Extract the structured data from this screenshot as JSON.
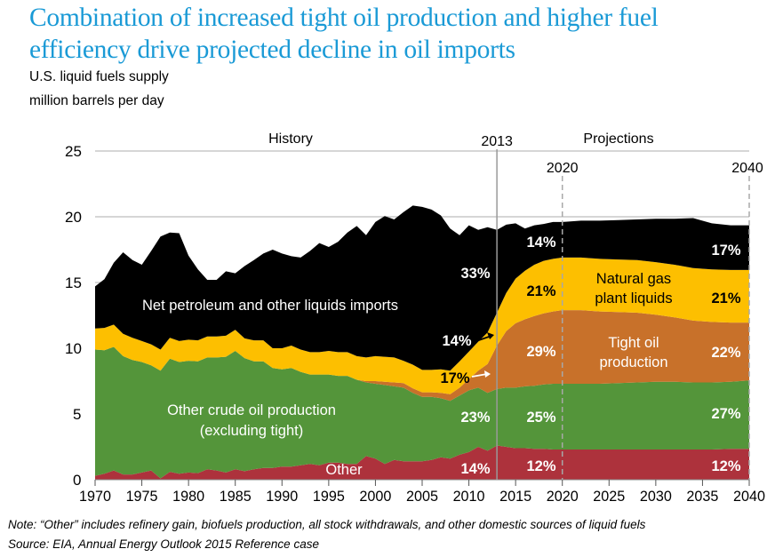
{
  "title_line1": "Combination of increased tight oil production and higher fuel",
  "title_line2": "efficiency drive projected decline in oil imports",
  "subtitle_line1": "U.S. liquid fuels supply",
  "subtitle_line2": "million barrels per day",
  "note": "Note: “Other” includes refinery gain, biofuels production, all stock withdrawals, and other domestic sources of liquid fuels",
  "source": "Source:  EIA, Annual Energy Outlook 2015 Reference case",
  "chart_data": {
    "type": "area",
    "stacked": true,
    "title": "U.S. liquid fuels supply",
    "ylabel": "million barrels per day",
    "xlabel": "",
    "xlim": [
      1970,
      2040
    ],
    "ylim": [
      0,
      25
    ],
    "yticks": [
      0,
      5,
      10,
      15,
      20,
      25
    ],
    "xticks": [
      1970,
      1975,
      1980,
      1985,
      1990,
      1995,
      2000,
      2005,
      2010,
      2015,
      2020,
      2025,
      2030,
      2035,
      2040
    ],
    "grid": "horizontal",
    "period_labels": {
      "history": "History",
      "projections": "Projections"
    },
    "markers": [
      {
        "year": 2013,
        "label": "2013",
        "style": "solid"
      },
      {
        "year": 2020,
        "label": "2020",
        "style": "dashed"
      },
      {
        "year": 2040,
        "label": "2040",
        "style": "dashed"
      }
    ],
    "x": [
      1970,
      1971,
      1972,
      1973,
      1974,
      1975,
      1976,
      1977,
      1978,
      1979,
      1980,
      1981,
      1982,
      1983,
      1984,
      1985,
      1986,
      1987,
      1988,
      1989,
      1990,
      1991,
      1992,
      1993,
      1994,
      1995,
      1996,
      1997,
      1998,
      1999,
      2000,
      2001,
      2002,
      2003,
      2004,
      2005,
      2006,
      2007,
      2008,
      2009,
      2010,
      2011,
      2012,
      2013,
      2014,
      2015,
      2016,
      2017,
      2018,
      2019,
      2020,
      2022,
      2024,
      2026,
      2028,
      2030,
      2032,
      2034,
      2036,
      2038,
      2040
    ],
    "series": [
      {
        "name": "Other",
        "color": "#ad323c",
        "values": [
          0.3,
          0.45,
          0.7,
          0.4,
          0.4,
          0.55,
          0.7,
          0.1,
          0.6,
          0.45,
          0.55,
          0.5,
          0.8,
          0.7,
          0.55,
          0.8,
          0.65,
          0.8,
          0.9,
          0.9,
          1.0,
          1.0,
          1.1,
          1.2,
          1.1,
          1.3,
          1.3,
          1.2,
          1.2,
          1.8,
          1.6,
          1.2,
          1.5,
          1.4,
          1.4,
          1.4,
          1.5,
          1.7,
          1.6,
          1.9,
          2.1,
          2.5,
          2.2,
          2.6,
          2.5,
          2.4,
          2.4,
          2.35,
          2.35,
          2.3,
          2.3,
          2.3,
          2.3,
          2.3,
          2.3,
          2.3,
          2.3,
          2.3,
          2.3,
          2.35,
          2.35
        ]
      },
      {
        "name": "Other crude oil production (excluding tight)",
        "color": "#54953a",
        "values": [
          9.6,
          9.4,
          9.4,
          9.0,
          8.7,
          8.4,
          8.0,
          8.2,
          8.6,
          8.5,
          8.5,
          8.5,
          8.5,
          8.6,
          8.8,
          9.0,
          8.6,
          8.2,
          8.1,
          7.6,
          7.4,
          7.5,
          7.1,
          6.8,
          6.9,
          6.7,
          6.6,
          6.7,
          6.4,
          5.6,
          5.7,
          6.0,
          5.6,
          5.6,
          5.2,
          4.9,
          4.8,
          4.5,
          4.4,
          4.5,
          4.7,
          4.5,
          4.4,
          4.3,
          4.5,
          4.6,
          4.7,
          4.8,
          4.9,
          5.0,
          5.0,
          5.0,
          5.0,
          5.05,
          5.1,
          5.15,
          5.15,
          5.1,
          5.1,
          5.1,
          5.2
        ]
      },
      {
        "name": "Tight oil production",
        "color": "#c8712a",
        "values": [
          0,
          0,
          0,
          0,
          0,
          0,
          0,
          0,
          0,
          0,
          0,
          0,
          0,
          0,
          0,
          0,
          0,
          0,
          0,
          0,
          0,
          0,
          0,
          0,
          0,
          0,
          0,
          0,
          0,
          0.1,
          0.2,
          0.25,
          0.3,
          0.35,
          0.35,
          0.35,
          0.35,
          0.4,
          0.5,
          0.6,
          0.85,
          1.3,
          2.2,
          3.3,
          4.3,
          4.9,
          5.1,
          5.3,
          5.4,
          5.5,
          5.6,
          5.6,
          5.5,
          5.4,
          5.3,
          5.1,
          4.9,
          4.7,
          4.6,
          4.5,
          4.4
        ]
      },
      {
        "name": "Natural gas plant liquids",
        "color": "#fdbf00",
        "values": [
          1.6,
          1.7,
          1.7,
          1.7,
          1.7,
          1.6,
          1.6,
          1.6,
          1.6,
          1.6,
          1.6,
          1.6,
          1.6,
          1.6,
          1.6,
          1.6,
          1.5,
          1.6,
          1.6,
          1.5,
          1.6,
          1.7,
          1.7,
          1.7,
          1.7,
          1.8,
          1.8,
          1.8,
          1.8,
          1.8,
          1.9,
          1.9,
          1.9,
          1.7,
          1.8,
          1.7,
          1.7,
          1.8,
          1.8,
          2.0,
          2.1,
          2.2,
          2.4,
          2.5,
          2.9,
          3.4,
          3.7,
          3.9,
          4.0,
          4.0,
          4.0,
          4.0,
          4.0,
          4.0,
          4.0,
          4.0,
          4.0,
          4.0,
          4.0,
          4.0,
          4.0
        ]
      },
      {
        "name": "Net petroleum and other liquids imports",
        "color": "#000000",
        "values": [
          3.2,
          3.7,
          4.7,
          6.2,
          5.9,
          5.8,
          7.1,
          8.6,
          8.0,
          8.2,
          6.4,
          5.4,
          4.3,
          4.3,
          4.9,
          4.3,
          5.5,
          6.1,
          6.6,
          7.5,
          7.2,
          6.8,
          7.0,
          7.7,
          8.3,
          7.9,
          8.4,
          9.1,
          9.9,
          9.3,
          10.2,
          10.7,
          10.5,
          11.3,
          12.1,
          12.4,
          12.2,
          11.7,
          10.8,
          9.6,
          9.6,
          8.5,
          8.0,
          6.3,
          5.2,
          4.2,
          3.2,
          3.0,
          2.8,
          2.8,
          2.7,
          2.8,
          2.9,
          3.0,
          3.1,
          3.3,
          3.5,
          3.8,
          3.5,
          3.4,
          3.4
        ]
      }
    ],
    "annotations": [
      {
        "text": "Net petroleum and other liquids imports",
        "series": "Net petroleum and other liquids imports"
      },
      {
        "text": "Other crude oil production",
        "series": "Other crude oil production (excluding tight)"
      },
      {
        "text": "(excluding tight)",
        "series": "Other crude oil production (excluding tight)"
      },
      {
        "text": "Other",
        "series": "Other"
      },
      {
        "text": "Natural gas",
        "series": "Natural gas plant liquids"
      },
      {
        "text": "plant liquids",
        "series": "Natural gas plant liquids"
      },
      {
        "text": "Tight oil",
        "series": "Tight oil production"
      },
      {
        "text": "production",
        "series": "Tight oil production"
      }
    ],
    "share_labels": {
      "2013": {
        "Net petroleum and other liquids imports": "33%",
        "Natural gas plant liquids": "14%",
        "Tight oil production": "17%",
        "Other crude oil production (excluding tight)": "23%",
        "Other": "14%"
      },
      "2020": {
        "Net petroleum and other liquids imports": "14%",
        "Natural gas plant liquids": "21%",
        "Tight oil production": "29%",
        "Other crude oil production (excluding tight)": "25%",
        "Other": "12%"
      },
      "2040": {
        "Net petroleum and other liquids imports": "17%",
        "Natural gas plant liquids": "21%",
        "Tight oil production": "22%",
        "Other crude oil production (excluding tight)": "27%",
        "Other": "12%"
      }
    }
  }
}
